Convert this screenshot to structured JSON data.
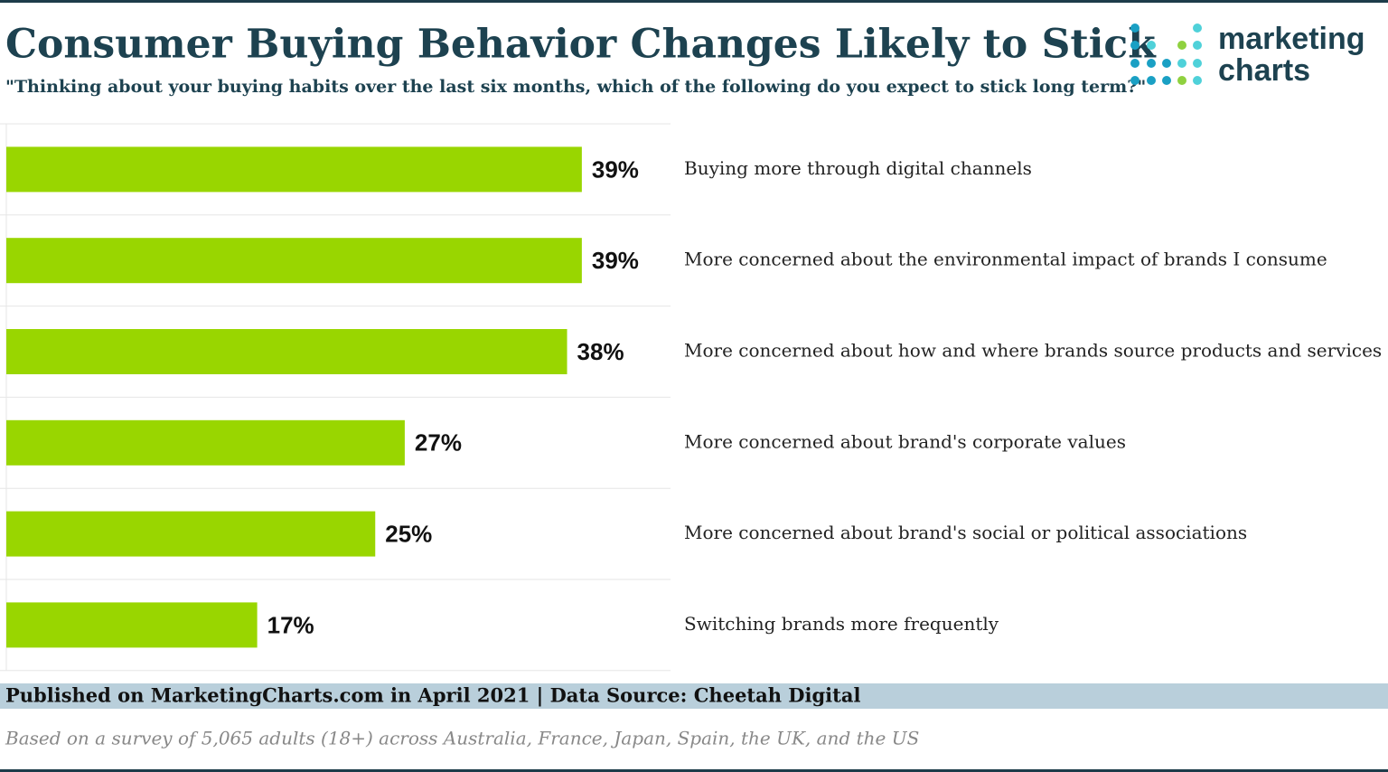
{
  "chart_data": {
    "type": "bar",
    "orientation": "horizontal",
    "title": "Consumer Buying Behavior Changes Likely to Stick",
    "subtitle": "\"Thinking about your buying habits over the last six months, which of the following do you expect to stick long term?\"",
    "categories": [
      "Buying more through digital channels",
      "More concerned about the environmental impact of brands I consume",
      "More concerned about how and where brands source products and services",
      "More concerned about brand's corporate values",
      "More concerned about brand's social or political associations",
      "Switching brands more frequently"
    ],
    "values": [
      39,
      39,
      38,
      27,
      25,
      17
    ],
    "value_labels": [
      "39%",
      "39%",
      "38%",
      "27%",
      "25%",
      "17%"
    ],
    "color": "#99d600",
    "source": "Published on MarketingCharts.com in April 2021 | Data Source: Cheetah Digital",
    "note": "Based on a survey of 5,065 adults (18+) across Australia, France, Japan, Spain, the UK, and the US",
    "brand": [
      "marketing",
      "charts"
    ]
  }
}
